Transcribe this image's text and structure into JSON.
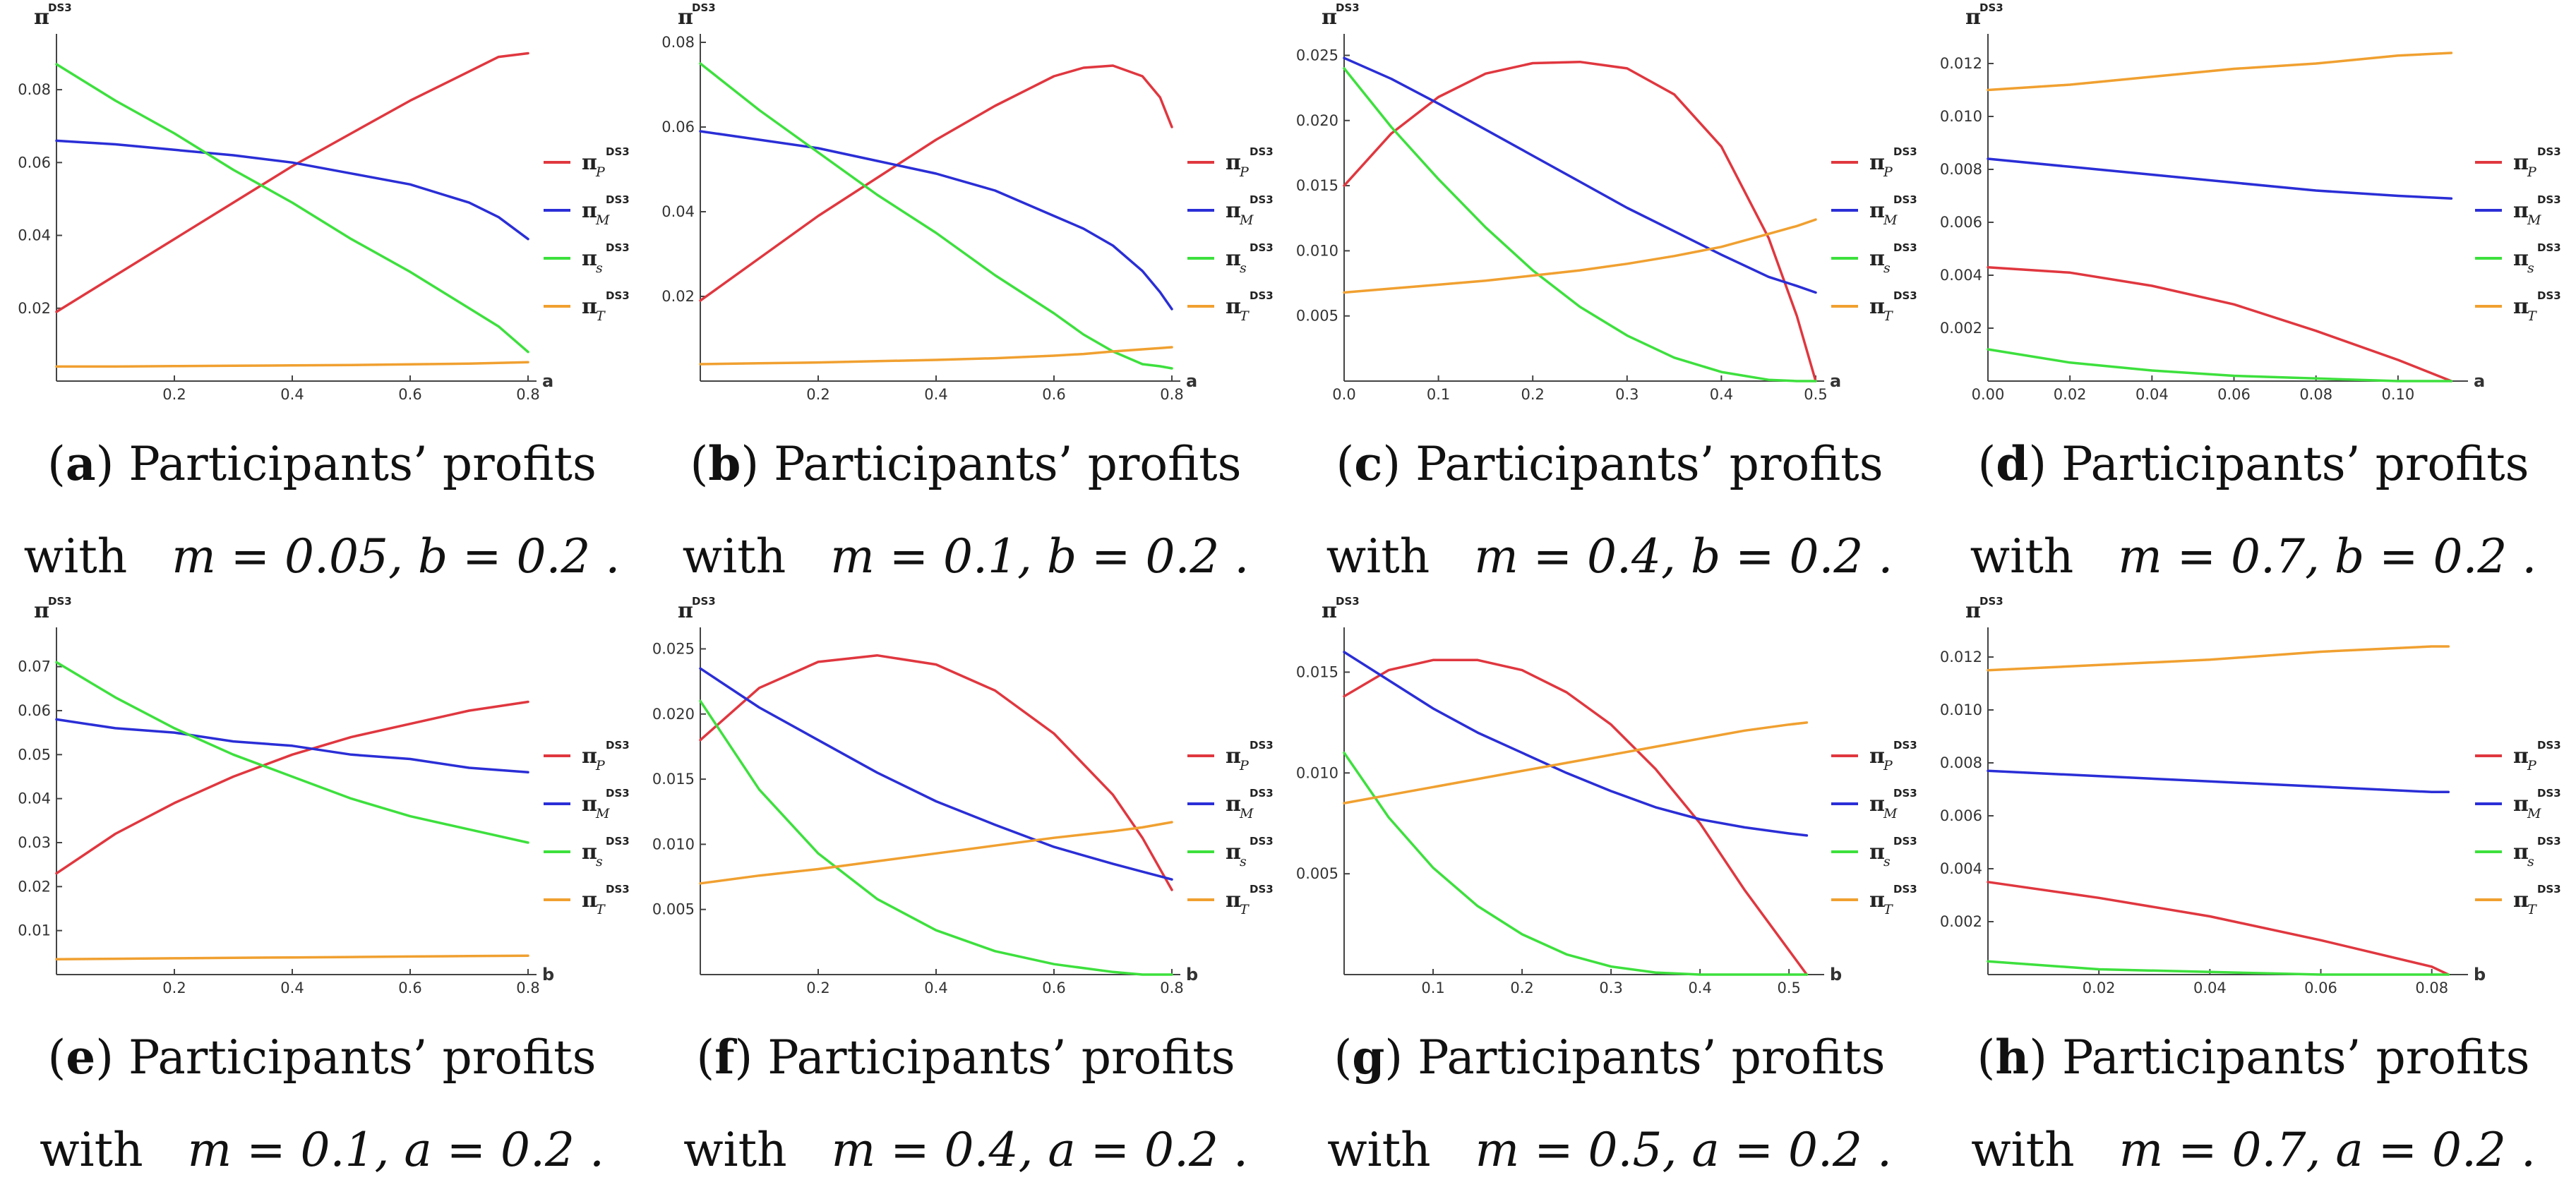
{
  "caption_text": "Participants’ profits",
  "with_word": "with",
  "legend_items": [
    {
      "name": "P",
      "color": "#e0373f"
    },
    {
      "name": "M",
      "color": "#2a2ed6"
    },
    {
      "name": "s",
      "color": "#3de03d"
    },
    {
      "name": "T",
      "color": "#f0a030"
    }
  ],
  "chart_data": [
    {
      "type": "line",
      "panel": "a",
      "letter": "a",
      "params": "m = 0.05, b = 0.2 .",
      "ylabel": "π",
      "ylabel_sup": "DS3",
      "xlabel": "a",
      "xlim": [
        0,
        0.8
      ],
      "ylim": [
        0,
        0.093
      ],
      "xticks": [
        0.2,
        0.4,
        0.6,
        0.8
      ],
      "xtick_labels": [
        "0.2",
        "0.4",
        "0.6",
        "0.8"
      ],
      "yticks": [
        0.02,
        0.04,
        0.06,
        0.08
      ],
      "ytick_labels": [
        "0.02",
        "0.04",
        "0.06",
        "0.08"
      ],
      "x": [
        0,
        0.1,
        0.2,
        0.3,
        0.4,
        0.5,
        0.6,
        0.7,
        0.75,
        0.8
      ],
      "series": [
        {
          "name": "πP",
          "values": [
            0.019,
            0.029,
            0.039,
            0.049,
            0.059,
            0.068,
            0.077,
            0.085,
            0.089,
            0.09
          ]
        },
        {
          "name": "πM",
          "values": [
            0.066,
            0.065,
            0.0635,
            0.062,
            0.06,
            0.057,
            0.054,
            0.049,
            0.045,
            0.039
          ]
        },
        {
          "name": "πs",
          "values": [
            0.087,
            0.077,
            0.068,
            0.058,
            0.049,
            0.039,
            0.03,
            0.02,
            0.015,
            0.008
          ]
        },
        {
          "name": "πT",
          "values": [
            0.004,
            0.004,
            0.0041,
            0.0042,
            0.0043,
            0.0044,
            0.0046,
            0.0048,
            0.005,
            0.0052
          ]
        }
      ]
    },
    {
      "type": "line",
      "panel": "b",
      "letter": "b",
      "params": "m = 0.1, b = 0.2 .",
      "ylabel": "π",
      "ylabel_sup": "DS3",
      "xlabel": "a",
      "xlim": [
        0,
        0.8
      ],
      "ylim": [
        0,
        0.08
      ],
      "xticks": [
        0.2,
        0.4,
        0.6,
        0.8
      ],
      "xtick_labels": [
        "0.2",
        "0.4",
        "0.6",
        "0.8"
      ],
      "yticks": [
        0.02,
        0.04,
        0.06,
        0.08
      ],
      "ytick_labels": [
        "0.02",
        "0.04",
        "0.06",
        "0.08"
      ],
      "x": [
        0,
        0.1,
        0.2,
        0.3,
        0.4,
        0.5,
        0.6,
        0.65,
        0.7,
        0.75,
        0.78,
        0.8
      ],
      "series": [
        {
          "name": "πP",
          "values": [
            0.019,
            0.029,
            0.039,
            0.048,
            0.057,
            0.065,
            0.072,
            0.074,
            0.0745,
            0.072,
            0.067,
            0.06
          ]
        },
        {
          "name": "πM",
          "values": [
            0.059,
            0.057,
            0.055,
            0.052,
            0.049,
            0.045,
            0.039,
            0.036,
            0.032,
            0.026,
            0.021,
            0.017
          ]
        },
        {
          "name": "πs",
          "values": [
            0.075,
            0.064,
            0.054,
            0.044,
            0.035,
            0.025,
            0.016,
            0.011,
            0.007,
            0.004,
            0.0035,
            0.003
          ]
        },
        {
          "name": "πT",
          "values": [
            0.004,
            0.0042,
            0.0044,
            0.0047,
            0.005,
            0.0054,
            0.006,
            0.0064,
            0.007,
            0.0075,
            0.0078,
            0.008
          ]
        }
      ]
    },
    {
      "type": "line",
      "panel": "c",
      "letter": "c",
      "params": "m = 0.4, b = 0.2 .",
      "ylabel": "π",
      "ylabel_sup": "DS3",
      "xlabel": "a",
      "xlim": [
        0,
        0.5
      ],
      "ylim": [
        0,
        0.026
      ],
      "xticks": [
        0,
        0.1,
        0.2,
        0.3,
        0.4,
        0.5
      ],
      "xtick_labels": [
        "0.0",
        "0.1",
        "0.2",
        "0.3",
        "0.4",
        "0.5"
      ],
      "yticks": [
        0.005,
        0.01,
        0.015,
        0.02,
        0.025
      ],
      "ytick_labels": [
        "0.005",
        "0.010",
        "0.015",
        "0.020",
        "0.025"
      ],
      "x": [
        0,
        0.05,
        0.1,
        0.15,
        0.2,
        0.25,
        0.3,
        0.35,
        0.4,
        0.45,
        0.48,
        0.5
      ],
      "series": [
        {
          "name": "πP",
          "values": [
            0.015,
            0.019,
            0.0218,
            0.0236,
            0.0244,
            0.0245,
            0.024,
            0.022,
            0.018,
            0.011,
            0.005,
            0.0
          ]
        },
        {
          "name": "πM",
          "values": [
            0.0248,
            0.0232,
            0.0213,
            0.0193,
            0.0173,
            0.0153,
            0.0133,
            0.0115,
            0.0097,
            0.008,
            0.0073,
            0.0068
          ]
        },
        {
          "name": "πs",
          "values": [
            0.024,
            0.0195,
            0.0155,
            0.0118,
            0.0085,
            0.0057,
            0.0035,
            0.0018,
            0.0007,
            0.0001,
            0.0,
            0.0
          ]
        },
        {
          "name": "πT",
          "values": [
            0.0068,
            0.0071,
            0.0074,
            0.0077,
            0.0081,
            0.0085,
            0.009,
            0.0096,
            0.0103,
            0.0113,
            0.0119,
            0.0124
          ]
        }
      ]
    },
    {
      "type": "line",
      "panel": "d",
      "letter": "d",
      "params": "m = 0.7, b = 0.2 .",
      "ylabel": "π",
      "ylabel_sup": "DS3",
      "xlabel": "a",
      "xlim": [
        0,
        0.115
      ],
      "ylim": [
        0,
        0.0128
      ],
      "xticks": [
        0,
        0.02,
        0.04,
        0.06,
        0.08,
        0.1
      ],
      "xtick_labels": [
        "0.00",
        "0.02",
        "0.04",
        "0.06",
        "0.08",
        "0.10"
      ],
      "yticks": [
        0.002,
        0.004,
        0.006,
        0.008,
        0.01,
        0.012
      ],
      "ytick_labels": [
        "0.002",
        "0.004",
        "0.006",
        "0.008",
        "0.010",
        "0.012"
      ],
      "x": [
        0,
        0.02,
        0.04,
        0.06,
        0.08,
        0.1,
        0.113
      ],
      "series": [
        {
          "name": "πP",
          "values": [
            0.0043,
            0.0041,
            0.0036,
            0.0029,
            0.0019,
            0.0008,
            0.0
          ]
        },
        {
          "name": "πM",
          "values": [
            0.0084,
            0.0081,
            0.0078,
            0.0075,
            0.0072,
            0.007,
            0.0069
          ]
        },
        {
          "name": "πs",
          "values": [
            0.0012,
            0.0007,
            0.0004,
            0.0002,
            0.0001,
            0.0,
            0.0
          ]
        },
        {
          "name": "πT",
          "values": [
            0.011,
            0.0112,
            0.0115,
            0.0118,
            0.012,
            0.0123,
            0.0124
          ]
        }
      ]
    },
    {
      "type": "line",
      "panel": "e",
      "letter": "e",
      "params": "m = 0.1, a = 0.2 .",
      "ylabel": "π",
      "ylabel_sup": "DS3",
      "xlabel": "b",
      "xlim": [
        0,
        0.8
      ],
      "ylim": [
        0,
        0.077
      ],
      "xticks": [
        0.2,
        0.4,
        0.6,
        0.8
      ],
      "xtick_labels": [
        "0.2",
        "0.4",
        "0.6",
        "0.8"
      ],
      "yticks": [
        0.01,
        0.02,
        0.03,
        0.04,
        0.05,
        0.06,
        0.07
      ],
      "ytick_labels": [
        "0.01",
        "0.02",
        "0.03",
        "0.04",
        "0.05",
        "0.06",
        "0.07"
      ],
      "x": [
        0,
        0.1,
        0.2,
        0.3,
        0.4,
        0.5,
        0.6,
        0.7,
        0.8
      ],
      "series": [
        {
          "name": "πP",
          "values": [
            0.023,
            0.032,
            0.039,
            0.045,
            0.05,
            0.054,
            0.057,
            0.06,
            0.062
          ]
        },
        {
          "name": "πM",
          "values": [
            0.058,
            0.056,
            0.055,
            0.053,
            0.052,
            0.05,
            0.049,
            0.047,
            0.046
          ]
        },
        {
          "name": "πs",
          "values": [
            0.071,
            0.063,
            0.056,
            0.05,
            0.045,
            0.04,
            0.036,
            0.033,
            0.03
          ]
        },
        {
          "name": "πT",
          "values": [
            0.0035,
            0.0036,
            0.0037,
            0.0038,
            0.0039,
            0.004,
            0.0041,
            0.0042,
            0.0043
          ]
        }
      ]
    },
    {
      "type": "line",
      "panel": "f",
      "letter": "f",
      "params": "m = 0.4, a = 0.2 .",
      "ylabel": "π",
      "ylabel_sup": "DS3",
      "xlabel": "b",
      "xlim": [
        0,
        0.8
      ],
      "ylim": [
        0,
        0.026
      ],
      "xticks": [
        0.2,
        0.4,
        0.6,
        0.8
      ],
      "xtick_labels": [
        "0.2",
        "0.4",
        "0.6",
        "0.8"
      ],
      "yticks": [
        0.005,
        0.01,
        0.015,
        0.02,
        0.025
      ],
      "ytick_labels": [
        "0.005",
        "0.010",
        "0.015",
        "0.020",
        "0.025"
      ],
      "x": [
        0,
        0.1,
        0.2,
        0.3,
        0.4,
        0.5,
        0.6,
        0.7,
        0.75,
        0.8
      ],
      "series": [
        {
          "name": "πP",
          "values": [
            0.018,
            0.022,
            0.024,
            0.0245,
            0.0238,
            0.0218,
            0.0185,
            0.0138,
            0.0105,
            0.0065
          ]
        },
        {
          "name": "πM",
          "values": [
            0.0235,
            0.0205,
            0.018,
            0.0155,
            0.0133,
            0.0115,
            0.0098,
            0.0085,
            0.0079,
            0.0073
          ]
        },
        {
          "name": "πs",
          "values": [
            0.021,
            0.0142,
            0.0093,
            0.0058,
            0.0034,
            0.0018,
            0.0008,
            0.0002,
            0.0,
            0.0
          ]
        },
        {
          "name": "πT",
          "values": [
            0.007,
            0.0076,
            0.0081,
            0.0087,
            0.0093,
            0.0099,
            0.0105,
            0.011,
            0.0113,
            0.0117
          ]
        }
      ]
    },
    {
      "type": "line",
      "panel": "g",
      "letter": "g",
      "params": "m = 0.5, a = 0.2 .",
      "ylabel": "π",
      "ylabel_sup": "DS3",
      "xlabel": "b",
      "xlim": [
        0,
        0.53
      ],
      "ylim": [
        0,
        0.0168
      ],
      "xticks": [
        0.1,
        0.2,
        0.3,
        0.4,
        0.5
      ],
      "xtick_labels": [
        "0.1",
        "0.2",
        "0.3",
        "0.4",
        "0.5"
      ],
      "yticks": [
        0.005,
        0.01,
        0.015
      ],
      "ytick_labels": [
        "0.005",
        "0.010",
        "0.015"
      ],
      "x": [
        0,
        0.05,
        0.1,
        0.15,
        0.2,
        0.25,
        0.3,
        0.35,
        0.4,
        0.45,
        0.5,
        0.52
      ],
      "series": [
        {
          "name": "πP",
          "values": [
            0.0138,
            0.0151,
            0.0156,
            0.0156,
            0.0151,
            0.014,
            0.0124,
            0.0102,
            0.0075,
            0.0042,
            0.0012,
            0.0
          ]
        },
        {
          "name": "πM",
          "values": [
            0.016,
            0.0146,
            0.0132,
            0.012,
            0.011,
            0.01,
            0.0091,
            0.0083,
            0.0077,
            0.0073,
            0.007,
            0.0069
          ]
        },
        {
          "name": "πs",
          "values": [
            0.011,
            0.0078,
            0.0053,
            0.0034,
            0.002,
            0.001,
            0.0004,
            0.0001,
            0.0,
            0.0,
            0.0,
            0.0
          ]
        },
        {
          "name": "πT",
          "values": [
            0.0085,
            0.0089,
            0.0093,
            0.0097,
            0.0101,
            0.0105,
            0.0109,
            0.0113,
            0.0117,
            0.0121,
            0.0124,
            0.0125
          ]
        }
      ]
    },
    {
      "type": "line",
      "panel": "h",
      "letter": "h",
      "params": "m = 0.7, a = 0.2 .",
      "ylabel": "π",
      "ylabel_sup": "DS3",
      "xlabel": "b",
      "xlim": [
        0,
        0.085
      ],
      "ylim": [
        0,
        0.0128
      ],
      "xticks": [
        0.02,
        0.04,
        0.06,
        0.08
      ],
      "xtick_labels": [
        "0.02",
        "0.04",
        "0.06",
        "0.08"
      ],
      "yticks": [
        0.002,
        0.004,
        0.006,
        0.008,
        0.01,
        0.012
      ],
      "ytick_labels": [
        "0.002",
        "0.004",
        "0.006",
        "0.008",
        "0.010",
        "0.012"
      ],
      "x": [
        0,
        0.02,
        0.04,
        0.06,
        0.08,
        0.083
      ],
      "series": [
        {
          "name": "πP",
          "values": [
            0.0035,
            0.0029,
            0.0022,
            0.0013,
            0.0003,
            0.0
          ]
        },
        {
          "name": "πM",
          "values": [
            0.0077,
            0.0075,
            0.0073,
            0.0071,
            0.0069,
            0.0069
          ]
        },
        {
          "name": "πs",
          "values": [
            0.0005,
            0.0002,
            0.0001,
            0.0,
            0.0,
            0.0
          ]
        },
        {
          "name": "πT",
          "values": [
            0.0115,
            0.0117,
            0.0119,
            0.0122,
            0.0124,
            0.0124
          ]
        }
      ]
    }
  ]
}
